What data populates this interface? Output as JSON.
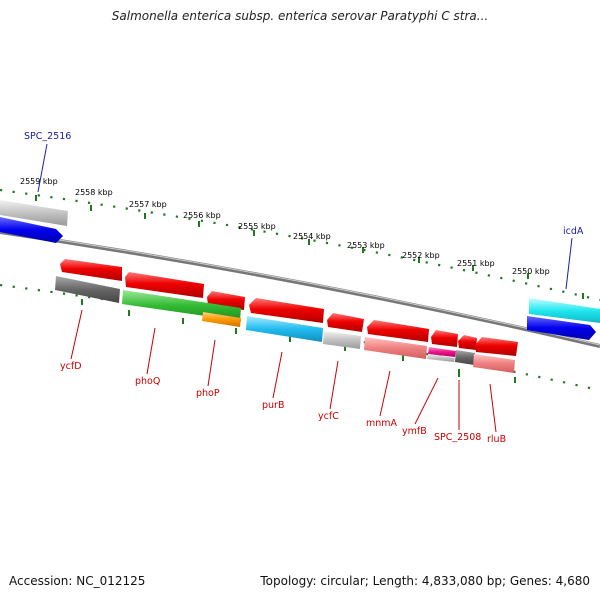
{
  "title": "Salmonella enterica subsp. enterica serovar Paratyphi C stra...",
  "footer": {
    "accession": "Accession: NC_012125",
    "summary": "Topology: circular; Length: 4,833,080 bp; Genes: 4,680"
  },
  "colors": {
    "backbone": "#888888",
    "tick": "#1f7a1f",
    "red_label": "#cc0000",
    "blue_label": "#1a1aa6",
    "forward_gene": "#e00000",
    "gc_blue": "#0000ee"
  },
  "kbp_ticks": [
    {
      "label": "2559 kbp"
    },
    {
      "label": "2558 kbp"
    },
    {
      "label": "2557 kbp"
    },
    {
      "label": "2556 kbp"
    },
    {
      "label": "2555 kbp"
    },
    {
      "label": "2554 kbp"
    },
    {
      "label": "2553 kbp"
    },
    {
      "label": "2552 kbp"
    },
    {
      "label": "2551 kbp"
    },
    {
      "label": "2550 kbp"
    }
  ],
  "genes": [
    {
      "name": "SPC_2516",
      "color": "#1a1aa6"
    },
    {
      "name": "icdA",
      "color": "#1a1aa6"
    },
    {
      "name": "ycfD",
      "color": "#cc0000"
    },
    {
      "name": "phoQ",
      "color": "#cc0000"
    },
    {
      "name": "phoP",
      "color": "#cc0000"
    },
    {
      "name": "purB",
      "color": "#cc0000"
    },
    {
      "name": "ycfC",
      "color": "#cc0000"
    },
    {
      "name": "mnmA",
      "color": "#cc0000"
    },
    {
      "name": "ymfB",
      "color": "#cc0000"
    },
    {
      "name": "SPC_2508",
      "color": "#cc0000"
    },
    {
      "name": "rluB",
      "color": "#cc0000"
    }
  ]
}
